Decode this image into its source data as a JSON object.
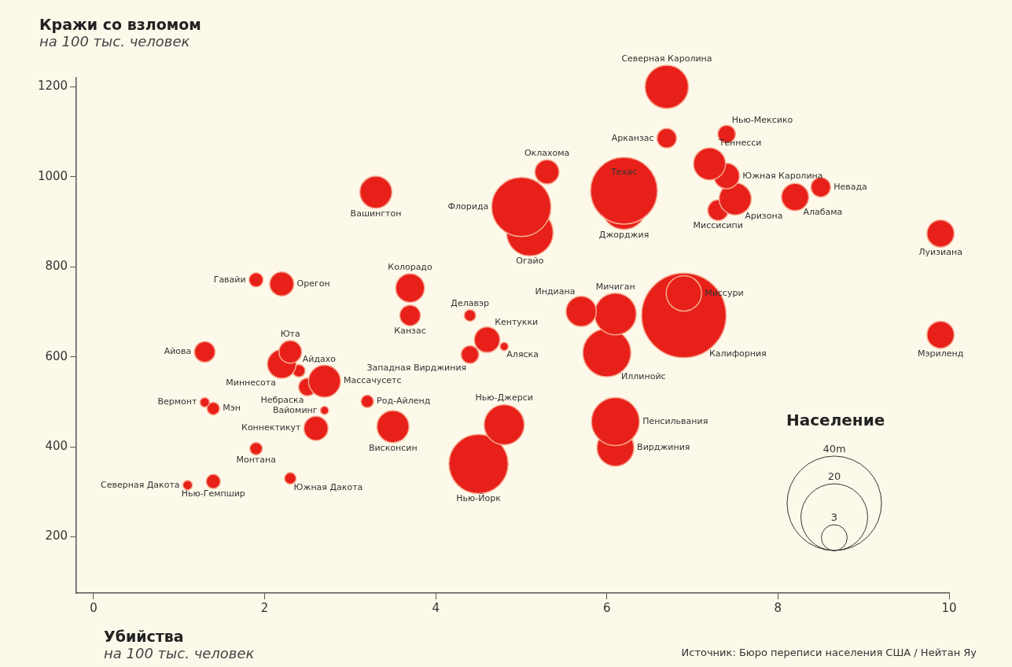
{
  "chart_data": {
    "type": "bubble",
    "xlabel": "Убийства\nна 100 тыс. человек",
    "ylabel": "Кражи со взломом\nна 100 тыс. человек",
    "legend_title": "Население",
    "annotations": [
      "Источник: Бюро переписи населения США / Нейтан Яу"
    ],
    "xlim": [
      -0.2,
      10
    ],
    "xticks": [
      0,
      2,
      4,
      6,
      8,
      10
    ],
    "ylim": [
      75,
      1220
    ],
    "yticks": [
      200,
      400,
      600,
      800,
      1000,
      1200
    ],
    "grid": false,
    "legend": false,
    "size_legend": [
      {
        "value": 3,
        "label": "3"
      },
      {
        "value": 20,
        "label": "20"
      },
      {
        "value": 40,
        "label": "40m"
      }
    ],
    "series": [
      {
        "name": "Северная Каролина",
        "color": "#e8201a",
        "x": [
          6.7
        ],
        "values": [
          1200
        ],
        "sizes": [
          8.4
        ]
      },
      {
        "name": "Нью-Мексико",
        "color": "#e8201a",
        "x": [
          7.4
        ],
        "values": [
          1095
        ],
        "sizes": [
          1.4
        ]
      },
      {
        "name": "Арканзас",
        "color": "#e8201a",
        "x": [
          6.7
        ],
        "values": [
          1086
        ],
        "sizes": [
          1.7
        ]
      },
      {
        "name": "Оклахома",
        "color": "#e8201a",
        "x": [
          5.3
        ],
        "values": [
          1011
        ],
        "sizes": [
          2.6
        ]
      },
      {
        "name": "Теннесси",
        "color": "#e8201a",
        "x": [
          7.2
        ],
        "values": [
          1029
        ],
        "sizes": [
          4.6
        ]
      },
      {
        "name": "Южная Каролина",
        "color": "#e8201a",
        "x": [
          7.4
        ],
        "values": [
          1002
        ],
        "sizes": [
          2.9
        ]
      },
      {
        "name": "Аризона",
        "color": "#e8201a",
        "x": [
          7.5
        ],
        "values": [
          951
        ],
        "sizes": [
          4.6
        ]
      },
      {
        "name": "Миссисипи",
        "color": "#e8201a",
        "x": [
          7.3
        ],
        "values": [
          926
        ],
        "sizes": [
          1.9
        ]
      },
      {
        "name": "Алабама",
        "color": "#e8201a",
        "x": [
          8.2
        ],
        "values": [
          955
        ],
        "sizes": [
          3.3
        ]
      },
      {
        "name": "Невада",
        "color": "#e8201a",
        "x": [
          8.5
        ],
        "values": [
          977
        ],
        "sizes": [
          1.7
        ]
      },
      {
        "name": "Техас",
        "color": "#e8201a",
        "x": [
          6.2
        ],
        "values": [
          969
        ],
        "sizes": [
          20
        ]
      },
      {
        "name": "Джорджия",
        "color": "#e8201a",
        "x": [
          6.2
        ],
        "values": [
          933
        ],
        "sizes": [
          9
        ]
      },
      {
        "name": "Флорида",
        "color": "#e8201a",
        "x": [
          5.0
        ],
        "values": [
          933
        ],
        "sizes": [
          15.7
        ]
      },
      {
        "name": "Огайо",
        "color": "#e8201a",
        "x": [
          5.1
        ],
        "values": [
          876
        ],
        "sizes": [
          9.7
        ]
      },
      {
        "name": "Вашингтон",
        "color": "#e8201a",
        "x": [
          3.3
        ],
        "values": [
          966
        ],
        "sizes": [
          4.6
        ]
      },
      {
        "name": "Луизиана",
        "color": "#e8201a",
        "x": [
          9.9
        ],
        "values": [
          874
        ],
        "sizes": [
          3.3
        ]
      },
      {
        "name": "Мэриленд",
        "color": "#e8201a",
        "x": [
          9.9
        ],
        "values": [
          649
        ],
        "sizes": [
          3.3
        ]
      },
      {
        "name": "Гавайи",
        "color": "#e8201a",
        "x": [
          1.9
        ],
        "values": [
          771
        ],
        "sizes": [
          0.9
        ]
      },
      {
        "name": "Орегон",
        "color": "#e8201a",
        "x": [
          2.2
        ],
        "values": [
          762
        ],
        "sizes": [
          2.6
        ]
      },
      {
        "name": "Колорадо",
        "color": "#e8201a",
        "x": [
          3.7
        ],
        "values": [
          753
        ],
        "sizes": [
          3.7
        ]
      },
      {
        "name": "Канзас",
        "color": "#e8201a",
        "x": [
          3.7
        ],
        "values": [
          692
        ],
        "sizes": [
          1.9
        ]
      },
      {
        "name": "Делавэр",
        "color": "#e8201a",
        "x": [
          4.4
        ],
        "values": [
          692
        ],
        "sizes": [
          0.6
        ]
      },
      {
        "name": "Кентукки",
        "color": "#e8201a",
        "x": [
          4.6
        ],
        "values": [
          638
        ],
        "sizes": [
          2.9
        ]
      },
      {
        "name": "Западная Вирджиния",
        "color": "#e8201a",
        "x": [
          4.4
        ],
        "values": [
          605
        ],
        "sizes": [
          1.4
        ]
      },
      {
        "name": "Аляска",
        "color": "#e8201a",
        "x": [
          4.8
        ],
        "values": [
          623
        ],
        "sizes": [
          0.3
        ]
      },
      {
        "name": "Индиана",
        "color": "#e8201a",
        "x": [
          5.7
        ],
        "values": [
          701
        ],
        "sizes": [
          4.1
        ]
      },
      {
        "name": "Мичиган",
        "color": "#e8201a",
        "x": [
          6.1
        ],
        "values": [
          695
        ],
        "sizes": [
          7.8
        ]
      },
      {
        "name": "Иллинойс",
        "color": "#e8201a",
        "x": [
          6.0
        ],
        "values": [
          609
        ],
        "sizes": [
          10.3
        ]
      },
      {
        "name": "Миссури",
        "color": "#e8201a",
        "x": [
          6.9
        ],
        "values": [
          741
        ],
        "sizes": [
          5.6
        ]
      },
      {
        "name": "Калифорния",
        "color": "#e8201a",
        "x": [
          6.9
        ],
        "values": [
          692
        ],
        "sizes": [
          32
        ]
      },
      {
        "name": "Нью-Джерси",
        "color": "#e8201a",
        "x": [
          4.8
        ],
        "values": [
          449
        ],
        "sizes": [
          7.2
        ]
      },
      {
        "name": "Нью-Йорк",
        "color": "#e8201a",
        "x": [
          4.5
        ],
        "values": [
          362
        ],
        "sizes": [
          15.7
        ]
      },
      {
        "name": "Пенсильвания",
        "color": "#e8201a",
        "x": [
          6.1
        ],
        "values": [
          456
        ],
        "sizes": [
          10.3
        ]
      },
      {
        "name": "Вирджиния",
        "color": "#e8201a",
        "x": [
          6.1
        ],
        "values": [
          398
        ],
        "sizes": [
          6.1
        ]
      },
      {
        "name": "Айова",
        "color": "#e8201a",
        "x": [
          1.3
        ],
        "values": [
          611
        ],
        "sizes": [
          1.9
        ]
      },
      {
        "name": "Юта",
        "color": "#e8201a",
        "x": [
          2.3
        ],
        "values": [
          611
        ],
        "sizes": [
          2.3
        ]
      },
      {
        "name": "Миннесота",
        "color": "#e8201a",
        "x": [
          2.2
        ],
        "values": [
          584
        ],
        "sizes": [
          3.7
        ]
      },
      {
        "name": "Айдахо",
        "color": "#e8201a",
        "x": [
          2.4
        ],
        "values": [
          569
        ],
        "sizes": [
          0.7
        ]
      },
      {
        "name": "Массачусетс",
        "color": "#e8201a",
        "x": [
          2.7
        ],
        "values": [
          546
        ],
        "sizes": [
          4.6
        ]
      },
      {
        "name": "Небраска",
        "color": "#e8201a",
        "x": [
          2.5
        ],
        "values": [
          533
        ],
        "sizes": [
          1.4
        ]
      },
      {
        "name": "Вермонт",
        "color": "#e8201a",
        "x": [
          1.3
        ],
        "values": [
          499
        ],
        "sizes": [
          0.4
        ]
      },
      {
        "name": "Мэн",
        "color": "#e8201a",
        "x": [
          1.4
        ],
        "values": [
          485
        ],
        "sizes": [
          0.7
        ]
      },
      {
        "name": "Вайоминг",
        "color": "#e8201a",
        "x": [
          2.7
        ],
        "values": [
          481
        ],
        "sizes": [
          0.3
        ]
      },
      {
        "name": "Род-Айленд",
        "color": "#e8201a",
        "x": [
          3.2
        ],
        "values": [
          501
        ],
        "sizes": [
          0.7
        ]
      },
      {
        "name": "Коннектикут",
        "color": "#e8201a",
        "x": [
          2.6
        ],
        "values": [
          441
        ],
        "sizes": [
          2.6
        ]
      },
      {
        "name": "Висконсин",
        "color": "#e8201a",
        "x": [
          3.5
        ],
        "values": [
          445
        ],
        "sizes": [
          4.6
        ]
      },
      {
        "name": "Монтана",
        "color": "#e8201a",
        "x": [
          1.9
        ],
        "values": [
          396
        ],
        "sizes": [
          0.7
        ]
      },
      {
        "name": "Северная Дакота",
        "color": "#e8201a",
        "x": [
          1.1
        ],
        "values": [
          315
        ],
        "sizes": [
          0.4
        ]
      },
      {
        "name": "Нью-Гемпшир",
        "color": "#e8201a",
        "x": [
          1.4
        ],
        "values": [
          323
        ],
        "sizes": [
          0.9
        ]
      },
      {
        "name": "Южная Дакота",
        "color": "#e8201a",
        "x": [
          2.3
        ],
        "values": [
          330
        ],
        "sizes": [
          0.6
        ]
      }
    ]
  }
}
